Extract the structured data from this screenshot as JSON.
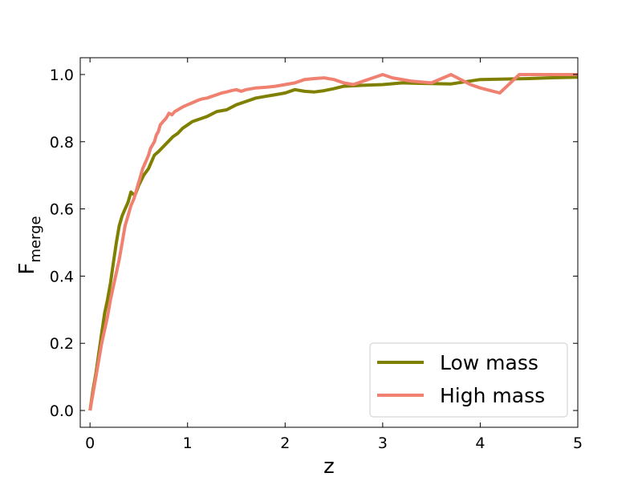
{
  "chart_data": {
    "type": "line",
    "xlabel": "z",
    "ylabel": "F",
    "ylabel_subscript": "merge",
    "xlim": [
      -0.1,
      5.0
    ],
    "ylim": [
      -0.05,
      1.05
    ],
    "xticks": [
      0,
      1,
      2,
      3,
      4,
      5
    ],
    "yticks": [
      0.0,
      0.2,
      0.4,
      0.6,
      0.8,
      1.0
    ],
    "xtick_labels": [
      "0",
      "1",
      "2",
      "3",
      "4",
      "5"
    ],
    "ytick_labels": [
      "0.0",
      "0.2",
      "0.4",
      "0.6",
      "0.8",
      "1.0"
    ],
    "legend_position": "lower-right",
    "grid": false,
    "ticks_direction": "in",
    "series": [
      {
        "name": "Low mass",
        "color": "#808000",
        "x": [
          0.0,
          0.03,
          0.06,
          0.09,
          0.12,
          0.15,
          0.18,
          0.21,
          0.24,
          0.27,
          0.3,
          0.33,
          0.36,
          0.39,
          0.42,
          0.44,
          0.46,
          0.5,
          0.55,
          0.6,
          0.63,
          0.66,
          0.7,
          0.75,
          0.8,
          0.85,
          0.9,
          0.95,
          1.0,
          1.05,
          1.1,
          1.2,
          1.3,
          1.4,
          1.5,
          1.6,
          1.7,
          1.8,
          1.9,
          2.0,
          2.1,
          2.2,
          2.3,
          2.4,
          2.5,
          2.6,
          2.8,
          3.0,
          3.2,
          3.5,
          3.7,
          4.0,
          4.2,
          4.5,
          4.7,
          5.0
        ],
        "y": [
          0.0,
          0.06,
          0.11,
          0.17,
          0.23,
          0.29,
          0.33,
          0.38,
          0.44,
          0.5,
          0.55,
          0.58,
          0.6,
          0.62,
          0.65,
          0.645,
          0.64,
          0.67,
          0.7,
          0.72,
          0.74,
          0.76,
          0.77,
          0.785,
          0.8,
          0.815,
          0.825,
          0.84,
          0.85,
          0.86,
          0.865,
          0.875,
          0.89,
          0.895,
          0.91,
          0.92,
          0.93,
          0.935,
          0.94,
          0.945,
          0.955,
          0.95,
          0.948,
          0.952,
          0.958,
          0.965,
          0.968,
          0.97,
          0.975,
          0.973,
          0.972,
          0.985,
          0.986,
          0.988,
          0.99,
          0.992
        ]
      },
      {
        "name": "High mass",
        "color": "#f08070",
        "x": [
          0.0,
          0.03,
          0.06,
          0.09,
          0.12,
          0.15,
          0.18,
          0.21,
          0.24,
          0.27,
          0.3,
          0.33,
          0.36,
          0.39,
          0.42,
          0.45,
          0.48,
          0.51,
          0.54,
          0.57,
          0.6,
          0.62,
          0.64,
          0.66,
          0.68,
          0.7,
          0.72,
          0.75,
          0.78,
          0.81,
          0.84,
          0.87,
          0.9,
          0.93,
          0.96,
          1.0,
          1.04,
          1.08,
          1.12,
          1.16,
          1.2,
          1.25,
          1.3,
          1.35,
          1.4,
          1.45,
          1.5,
          1.55,
          1.6,
          1.7,
          1.8,
          1.9,
          2.0,
          2.1,
          2.2,
          2.3,
          2.4,
          2.5,
          2.6,
          2.7,
          2.8,
          2.9,
          3.0,
          3.1,
          3.3,
          3.5,
          3.7,
          3.9,
          4.0,
          4.2,
          4.4,
          4.6,
          5.0
        ],
        "y": [
          0.0,
          0.05,
          0.1,
          0.15,
          0.2,
          0.24,
          0.28,
          0.33,
          0.37,
          0.41,
          0.45,
          0.5,
          0.55,
          0.58,
          0.61,
          0.63,
          0.66,
          0.69,
          0.72,
          0.74,
          0.76,
          0.78,
          0.79,
          0.8,
          0.82,
          0.83,
          0.85,
          0.86,
          0.87,
          0.885,
          0.88,
          0.89,
          0.895,
          0.9,
          0.905,
          0.91,
          0.915,
          0.92,
          0.925,
          0.928,
          0.93,
          0.935,
          0.94,
          0.945,
          0.948,
          0.952,
          0.955,
          0.95,
          0.955,
          0.96,
          0.962,
          0.965,
          0.97,
          0.975,
          0.985,
          0.988,
          0.99,
          0.985,
          0.975,
          0.97,
          0.98,
          0.99,
          1.0,
          0.99,
          0.98,
          0.975,
          1.0,
          0.97,
          0.96,
          0.945,
          1.0,
          1.0,
          1.0
        ]
      }
    ]
  }
}
